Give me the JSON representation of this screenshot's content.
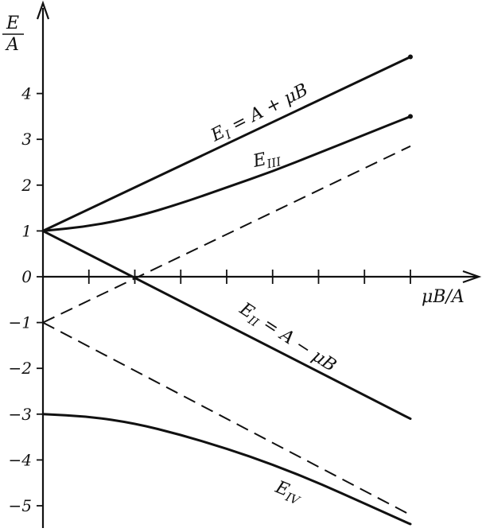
{
  "chart_data": {
    "type": "line",
    "ylabel": {
      "num": "E",
      "den": "A"
    },
    "xlabel": "μB/A",
    "xlim": [
      0,
      8
    ],
    "ylim": [
      -5.5,
      5.8
    ],
    "x_tick_positions": [
      0,
      1,
      2,
      3,
      4,
      5,
      6,
      7,
      8
    ],
    "y_ticks": [
      4,
      3,
      2,
      1,
      0,
      -1,
      -2,
      -3,
      -4,
      -5
    ],
    "y_tick_labels": [
      "4",
      "3",
      "2",
      "1",
      "0",
      "−1",
      "−2",
      "−3",
      "−4",
      "−5"
    ],
    "series": [
      {
        "id": "e1",
        "label": "E",
        "sub": "I",
        "label_rest": " = A + μB",
        "style": "solid",
        "x": [
          0,
          8
        ],
        "y": [
          1,
          4.8
        ],
        "end_marker": true
      },
      {
        "id": "e3",
        "label": "E",
        "sub": "III",
        "label_rest": "",
        "style": "solid",
        "x": [
          0,
          1,
          2,
          3,
          4,
          5,
          6,
          7,
          8
        ],
        "y": [
          1,
          1.1,
          1.3,
          1.6,
          1.95,
          2.3,
          2.7,
          3.1,
          3.5
        ],
        "end_marker": true
      },
      {
        "id": "e2",
        "label": "E",
        "sub": "II",
        "label_rest": " = A − μB",
        "style": "solid",
        "x": [
          0,
          8
        ],
        "y": [
          1,
          -3.1
        ],
        "end_marker": false
      },
      {
        "id": "e4",
        "label": "E",
        "sub": "IV",
        "label_rest": "",
        "style": "solid",
        "x": [
          0,
          1,
          2,
          3,
          4,
          5,
          6,
          7,
          8
        ],
        "y": [
          -3,
          -3.05,
          -3.2,
          -3.45,
          -3.75,
          -4.1,
          -4.5,
          -4.95,
          -5.4
        ],
        "end_marker": false
      },
      {
        "id": "dash-up",
        "label": "",
        "style": "dashed",
        "x": [
          0,
          8
        ],
        "y": [
          -1,
          2.85
        ]
      },
      {
        "id": "dash-down",
        "label": "",
        "style": "dashed",
        "x": [
          0,
          8
        ],
        "y": [
          -1,
          -5.2
        ]
      }
    ]
  }
}
